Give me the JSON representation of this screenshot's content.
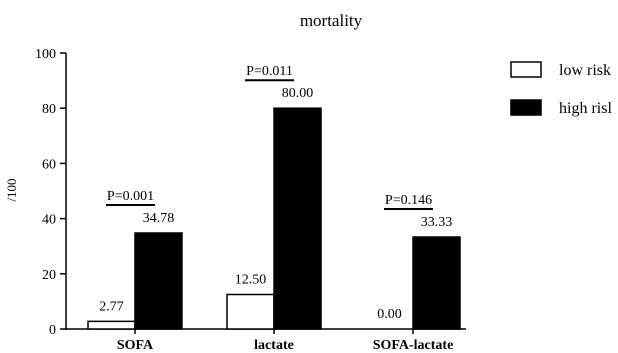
{
  "chart_data": {
    "type": "bar",
    "title": "mortality",
    "ylabel": "/100",
    "xlabel": "",
    "ylim": [
      0,
      100
    ],
    "yticks": [
      0,
      20,
      40,
      60,
      80,
      100
    ],
    "categories": [
      "SOFA",
      "lactate",
      "SOFA-lactate"
    ],
    "series": [
      {
        "name": "low risk",
        "values": [
          2.77,
          12.5,
          0.0
        ],
        "labels": [
          "2.77",
          "12.50",
          "0.00"
        ],
        "color": "#ffffff",
        "stroke": "#000000"
      },
      {
        "name": "high risl",
        "values": [
          34.78,
          80.0,
          33.33
        ],
        "labels": [
          "34.78",
          "80.00",
          "33.33"
        ],
        "color": "#000000",
        "stroke": "#000000"
      }
    ],
    "p_values": [
      "P=0.001",
      "P=0.011",
      "P=0.146"
    ],
    "legend_placement": "top-right",
    "grid": false
  }
}
